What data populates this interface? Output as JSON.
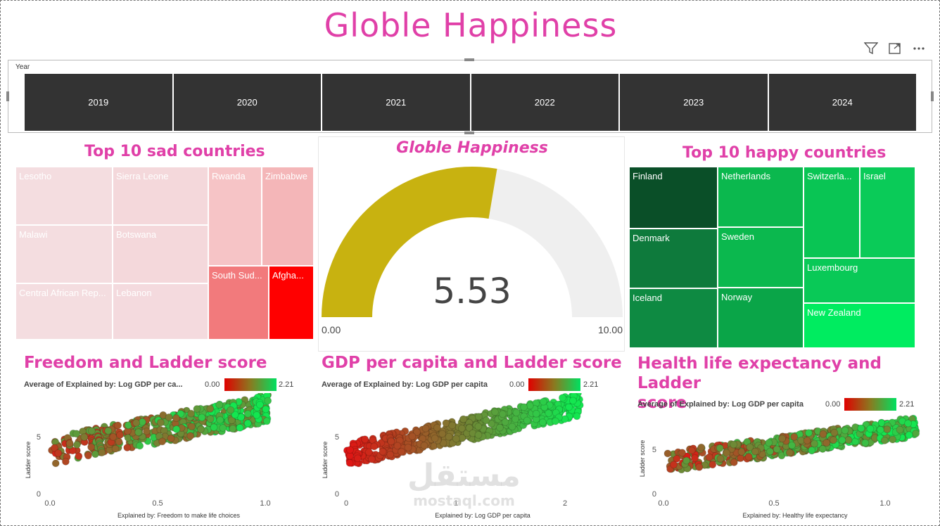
{
  "page": {
    "title": "Globle Happiness"
  },
  "toolbar": {
    "filter_icon": "filter-icon",
    "focus_icon": "focus-mode-icon",
    "more_icon": "more-options-icon"
  },
  "slicer": {
    "label": "Year",
    "years": [
      "2019",
      "2020",
      "2021",
      "2022",
      "2023",
      "2024"
    ]
  },
  "sad": {
    "title": "Top 10 sad countries",
    "tiles": [
      "Lesotho",
      "Sierra Leone",
      "Rwanda",
      "Zimbabwe",
      "Malawi",
      "Botswana",
      "Central African Rep...",
      "Lebanon",
      "South Sud...",
      "Afgha..."
    ]
  },
  "gauge": {
    "title": "Globle Happiness",
    "value": "5.53",
    "min": "0.00",
    "max": "10.00",
    "fill_fraction": 0.553,
    "fill_color": "#c8b210",
    "track_color": "#efefef"
  },
  "happy": {
    "title": "Top 10 happy countries",
    "tiles": [
      "Finland",
      "Netherlands",
      "Switzerla...",
      "Israel",
      "Denmark",
      "Sweden",
      "Luxembourg",
      "Iceland",
      "Norway",
      "New Zealand"
    ]
  },
  "scatter1": {
    "title": "Freedom and Ladder score",
    "legend_label": "Average of Explained by: Log GDP per ca...",
    "legend_min": "0.00",
    "legend_max": "2.21",
    "ylabel": "Ladder score",
    "xlabel": "Explained by: Freedom to make life choices",
    "xticks": [
      "0.0",
      "0.5",
      "1.0"
    ],
    "yticks": [
      "0",
      "5"
    ]
  },
  "scatter2": {
    "title": "GDP per capita and Ladder score",
    "legend_label": "Average of Explained by: Log GDP per capita",
    "legend_min": "0.00",
    "legend_max": "2.21",
    "ylabel": "Ladder score",
    "xlabel": "Explained by: Log GDP per capita",
    "xticks": [
      "0",
      "1",
      "2"
    ],
    "yticks": [
      "0",
      "5"
    ]
  },
  "scatter3": {
    "title": "Health life expectancy and Ladder score",
    "title_line1": "Health life expectancy and Ladder",
    "title_line2": "score",
    "legend_label": "Average of Explained by: Log GDP per capita",
    "legend_min": "0.00",
    "legend_max": "2.21",
    "ylabel": "Ladder score",
    "xlabel": "Explained by: Healthy life expectancy",
    "xticks": [
      "0.0",
      "0.5",
      "1.0"
    ],
    "yticks": [
      "0",
      "5"
    ]
  },
  "watermark": {
    "arabic": "مستقل",
    "latin": "mostaql.com"
  },
  "colors": {
    "accent": "#e040a8",
    "slicer_bg": "#333333",
    "sad_low": "#f4dde0",
    "sad_high": "#ff0000",
    "happy_dark": "#0a4f28",
    "happy_bright": "#00f060"
  }
}
